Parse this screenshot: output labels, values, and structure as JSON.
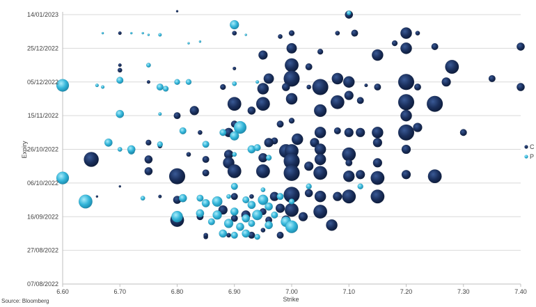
{
  "chart_data": {
    "type": "scatter",
    "subtype": "bubble",
    "xlabel": "Strike",
    "ylabel": "Expiry",
    "xlim": [
      6.6,
      7.4
    ],
    "x_ticks": [
      "6.60",
      "6.70",
      "6.80",
      "6.90",
      "7.00",
      "7.10",
      "7.20",
      "7.30",
      "7.40"
    ],
    "ylim": [
      "2022-08-07",
      "2023-01-14"
    ],
    "y_ticks": [
      "14/01/2023",
      "25/12/2022",
      "05/12/2022",
      "15/11/2022",
      "26/10/2022",
      "06/10/2022",
      "16/09/2022",
      "27/08/2022",
      "07/08/2022"
    ],
    "grid": "horizontal",
    "legend_position": "right",
    "series": [
      {
        "name": "C",
        "color": "#1a2f5c",
        "points": [
          [
            6.8,
            "2023-01-16",
            2
          ],
          [
            7.1,
            "2023-01-14",
            7
          ],
          [
            6.7,
            "2023-01-03",
            3
          ],
          [
            6.9,
            "2023-01-03",
            4
          ],
          [
            6.98,
            "2023-01-01",
            4
          ],
          [
            7.0,
            "2023-01-03",
            5
          ],
          [
            7.08,
            "2023-01-03",
            4
          ],
          [
            7.11,
            "2023-01-03",
            6
          ],
          [
            7.2,
            "2023-01-03",
            10
          ],
          [
            7.22,
            "2023-01-03",
            4
          ],
          [
            7.18,
            "2022-12-28",
            5
          ],
          [
            7.25,
            "2022-12-26",
            6
          ],
          [
            7.4,
            "2022-12-26",
            7
          ],
          [
            7.05,
            "2022-12-23",
            5
          ],
          [
            7.0,
            "2022-12-25",
            9
          ],
          [
            6.95,
            "2022-12-21",
            8
          ],
          [
            7.15,
            "2022-12-21",
            10
          ],
          [
            7.2,
            "2022-12-25",
            10
          ],
          [
            6.7,
            "2022-12-15",
            3
          ],
          [
            6.7,
            "2022-12-12",
            4
          ],
          [
            7.0,
            "2022-12-15",
            12
          ],
          [
            7.03,
            "2022-12-14",
            6
          ],
          [
            7.28,
            "2022-12-14",
            12
          ],
          [
            6.9,
            "2022-12-13",
            3
          ],
          [
            6.96,
            "2022-12-07",
            9
          ],
          [
            7.0,
            "2022-12-07",
            14
          ],
          [
            7.08,
            "2022-12-07",
            10
          ],
          [
            7.1,
            "2022-12-05",
            10
          ],
          [
            7.2,
            "2022-12-05",
            14
          ],
          [
            7.27,
            "2022-12-05",
            8
          ],
          [
            7.35,
            "2022-12-07",
            6
          ],
          [
            7.05,
            "2022-12-02",
            14
          ],
          [
            7.15,
            "2022-12-02",
            6
          ],
          [
            7.22,
            "2022-12-02",
            6
          ],
          [
            7.4,
            "2022-12-02",
            7
          ],
          [
            6.75,
            "2022-12-05",
            3
          ],
          [
            6.88,
            "2022-12-02",
            5
          ],
          [
            6.99,
            "2022-12-02",
            7
          ],
          [
            7.03,
            "2022-12-02",
            4
          ],
          [
            7.13,
            "2022-12-03",
            3
          ],
          [
            6.95,
            "2022-12-01",
            10
          ],
          [
            7.1,
            "2022-11-27",
            8
          ],
          [
            6.9,
            "2022-11-22",
            12
          ],
          [
            6.95,
            "2022-11-22",
            12
          ],
          [
            7.0,
            "2022-11-25",
            10
          ],
          [
            7.08,
            "2022-11-23",
            12
          ],
          [
            7.12,
            "2022-11-24",
            6
          ],
          [
            7.2,
            "2022-11-23",
            14
          ],
          [
            7.25,
            "2022-11-22",
            14
          ],
          [
            6.83,
            "2022-11-18",
            8
          ],
          [
            6.93,
            "2022-11-18",
            7
          ],
          [
            7.05,
            "2022-11-18",
            11
          ],
          [
            7.2,
            "2022-11-15",
            10
          ],
          [
            6.8,
            "2022-11-15",
            6
          ],
          [
            6.9,
            "2022-11-10",
            6
          ],
          [
            6.98,
            "2022-11-10",
            6
          ],
          [
            7.0,
            "2022-11-12",
            5
          ],
          [
            6.84,
            "2022-11-05",
            4
          ],
          [
            6.89,
            "2022-11-05",
            8
          ],
          [
            7.05,
            "2022-11-05",
            10
          ],
          [
            7.08,
            "2022-11-06",
            6
          ],
          [
            7.1,
            "2022-11-05",
            8
          ],
          [
            7.12,
            "2022-11-05",
            8
          ],
          [
            7.15,
            "2022-11-05",
            10
          ],
          [
            7.2,
            "2022-11-05",
            14
          ],
          [
            7.22,
            "2022-11-08",
            8
          ],
          [
            7.3,
            "2022-11-05",
            6
          ],
          [
            6.75,
            "2022-10-30",
            5
          ],
          [
            6.97,
            "2022-10-31",
            6
          ],
          [
            7.01,
            "2022-11-01",
            10
          ],
          [
            7.04,
            "2022-10-30",
            8
          ],
          [
            6.96,
            "2022-10-30",
            8
          ],
          [
            7.15,
            "2022-10-30",
            8
          ],
          [
            6.77,
            "2022-10-28",
            4
          ],
          [
            6.99,
            "2022-10-25",
            12
          ],
          [
            7.0,
            "2022-10-25",
            12
          ],
          [
            7.05,
            "2022-10-26",
            10
          ],
          [
            7.1,
            "2022-10-23",
            12
          ],
          [
            7.2,
            "2022-10-26",
            8
          ],
          [
            6.89,
            "2022-10-23",
            8
          ],
          [
            6.82,
            "2022-10-23",
            4
          ],
          [
            6.65,
            "2022-10-20",
            13
          ],
          [
            6.75,
            "2022-10-20",
            7
          ],
          [
            6.85,
            "2022-10-20",
            6
          ],
          [
            6.95,
            "2022-10-21",
            8
          ],
          [
            7.05,
            "2022-10-20",
            10
          ],
          [
            7.0,
            "2022-10-19",
            14
          ],
          [
            6.89,
            "2022-10-18",
            10
          ],
          [
            7.03,
            "2022-10-16",
            8
          ],
          [
            7.1,
            "2022-10-18",
            6
          ],
          [
            7.15,
            "2022-10-18",
            8
          ],
          [
            6.75,
            "2022-10-13",
            7
          ],
          [
            6.8,
            "2022-10-10",
            14
          ],
          [
            6.85,
            "2022-10-12",
            6
          ],
          [
            6.9,
            "2022-10-13",
            12
          ],
          [
            6.95,
            "2022-10-13",
            12
          ],
          [
            7.0,
            "2022-10-12",
            14
          ],
          [
            7.05,
            "2022-10-12",
            12
          ],
          [
            7.1,
            "2022-10-10",
            10
          ],
          [
            7.12,
            "2022-10-11",
            8
          ],
          [
            7.15,
            "2022-10-09",
            12
          ],
          [
            7.2,
            "2022-10-11",
            8
          ],
          [
            7.25,
            "2022-10-10",
            12
          ],
          [
            6.66,
            "2022-09-28",
            2
          ],
          [
            6.7,
            "2022-10-04",
            2
          ],
          [
            6.77,
            "2022-09-28",
            3
          ],
          [
            6.8,
            "2022-09-26",
            7
          ],
          [
            6.9,
            "2022-09-28",
            6
          ],
          [
            6.93,
            "2022-09-28",
            4
          ],
          [
            6.97,
            "2022-09-28",
            8
          ],
          [
            7.0,
            "2022-09-29",
            14
          ],
          [
            7.03,
            "2022-09-30",
            7
          ],
          [
            7.05,
            "2022-09-28",
            10
          ],
          [
            7.08,
            "2022-09-28",
            8
          ],
          [
            7.1,
            "2022-09-28",
            12
          ],
          [
            7.15,
            "2022-09-28",
            12
          ],
          [
            6.88,
            "2022-09-20",
            8
          ],
          [
            6.92,
            "2022-09-17",
            8
          ],
          [
            6.95,
            "2022-09-19",
            6
          ],
          [
            6.98,
            "2022-09-21",
            8
          ],
          [
            7.0,
            "2022-09-20",
            12
          ],
          [
            7.05,
            "2022-09-19",
            12
          ],
          [
            7.02,
            "2022-09-16",
            8
          ],
          [
            6.8,
            "2022-09-14",
            12
          ],
          [
            6.84,
            "2022-09-16",
            6
          ],
          [
            6.9,
            "2022-09-15",
            6
          ],
          [
            6.96,
            "2022-09-14",
            6
          ],
          [
            6.99,
            "2022-09-14",
            8
          ],
          [
            7.07,
            "2022-09-11",
            10
          ],
          [
            6.85,
            "2022-09-04",
            4
          ],
          [
            6.89,
            "2022-09-05",
            4
          ],
          [
            6.93,
            "2022-09-05",
            6
          ],
          [
            6.95,
            "2022-09-08",
            4
          ],
          [
            6.98,
            "2022-09-05",
            6
          ],
          [
            6.85,
            "2022-09-05",
            4
          ]
        ]
      },
      {
        "name": "P",
        "color": "#33b5d9",
        "points": [
          [
            7.1,
            "2023-01-15",
            4
          ],
          [
            6.9,
            "2023-01-08",
            8
          ],
          [
            6.67,
            "2023-01-03",
            2
          ],
          [
            6.72,
            "2023-01-03",
            2
          ],
          [
            6.74,
            "2023-01-03",
            2
          ],
          [
            6.75,
            "2023-01-02",
            2
          ],
          [
            6.77,
            "2023-01-02",
            3
          ],
          [
            6.82,
            "2022-12-28",
            2
          ],
          [
            6.84,
            "2022-12-29",
            2
          ],
          [
            6.92,
            "2023-01-02",
            2
          ],
          [
            6.75,
            "2022-12-15",
            4
          ],
          [
            6.66,
            "2022-12-03",
            3
          ],
          [
            6.67,
            "2022-12-02",
            3
          ],
          [
            6.7,
            "2022-12-06",
            6
          ],
          [
            6.77,
            "2022-12-02",
            6
          ],
          [
            6.78,
            "2022-12-01",
            5
          ],
          [
            6.8,
            "2022-12-05",
            5
          ],
          [
            6.82,
            "2022-12-05",
            5
          ],
          [
            6.9,
            "2022-12-04",
            4
          ],
          [
            6.94,
            "2022-12-05",
            3
          ],
          [
            6.6,
            "2022-12-03",
            11
          ],
          [
            6.6,
            "2022-10-09",
            11
          ],
          [
            6.7,
            "2022-11-16",
            7
          ],
          [
            6.68,
            "2022-10-30",
            7
          ],
          [
            6.7,
            "2022-10-26",
            4
          ],
          [
            6.72,
            "2022-10-25",
            6
          ],
          [
            6.77,
            "2022-11-16",
            3
          ],
          [
            6.81,
            "2022-11-06",
            6
          ],
          [
            6.88,
            "2022-11-05",
            6
          ],
          [
            6.91,
            "2022-11-08",
            11
          ],
          [
            6.9,
            "2022-11-03",
            8
          ],
          [
            6.93,
            "2022-10-26",
            7
          ],
          [
            6.94,
            "2022-10-27",
            6
          ],
          [
            6.96,
            "2022-10-21",
            5
          ],
          [
            6.9,
            "2022-10-23",
            4
          ],
          [
            6.64,
            "2022-09-25",
            12
          ],
          [
            6.72,
            "2022-10-26",
            7
          ],
          [
            6.77,
            "2022-10-29",
            5
          ],
          [
            6.85,
            "2022-10-29",
            6
          ],
          [
            6.74,
            "2022-09-27",
            4
          ],
          [
            6.81,
            "2022-09-27",
            7
          ],
          [
            6.84,
            "2022-09-27",
            6
          ],
          [
            6.85,
            "2022-09-24",
            7
          ],
          [
            6.87,
            "2022-09-25",
            9
          ],
          [
            6.89,
            "2022-09-28",
            4
          ],
          [
            6.92,
            "2022-09-26",
            6
          ],
          [
            6.93,
            "2022-09-23",
            7
          ],
          [
            6.95,
            "2022-09-26",
            9
          ],
          [
            6.96,
            "2022-09-22",
            7
          ],
          [
            6.98,
            "2022-09-28",
            6
          ],
          [
            7.0,
            "2022-09-25",
            5
          ],
          [
            7.03,
            "2022-10-04",
            5
          ],
          [
            7.12,
            "2022-10-04",
            5
          ],
          [
            6.95,
            "2022-10-02",
            4
          ],
          [
            6.9,
            "2022-10-04",
            6
          ],
          [
            6.8,
            "2022-09-16",
            10
          ],
          [
            6.84,
            "2022-09-18",
            7
          ],
          [
            6.87,
            "2022-09-17",
            8
          ],
          [
            6.9,
            "2022-09-19",
            7
          ],
          [
            6.92,
            "2022-09-15",
            7
          ],
          [
            6.94,
            "2022-09-17",
            9
          ],
          [
            6.97,
            "2022-09-17",
            6
          ],
          [
            6.86,
            "2022-09-13",
            6
          ],
          [
            6.89,
            "2022-09-12",
            8
          ],
          [
            6.91,
            "2022-09-10",
            7
          ],
          [
            6.93,
            "2022-09-12",
            6
          ],
          [
            6.96,
            "2022-09-11",
            7
          ],
          [
            6.99,
            "2022-09-13",
            9
          ],
          [
            7.0,
            "2022-09-10",
            11
          ],
          [
            6.88,
            "2022-09-06",
            7
          ],
          [
            6.9,
            "2022-09-05",
            6
          ],
          [
            6.92,
            "2022-09-06",
            7
          ],
          [
            6.94,
            "2022-09-04",
            5
          ]
        ]
      }
    ]
  },
  "source": "Source: Bloomberg"
}
